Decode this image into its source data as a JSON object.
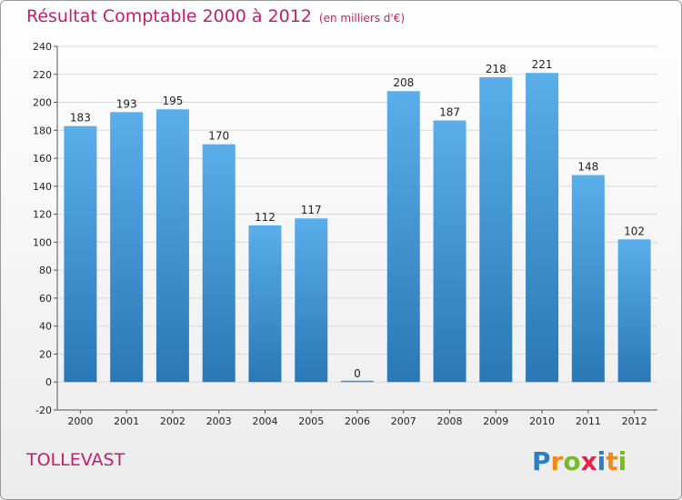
{
  "title": "Résultat Comptable 2000 à 2012",
  "unit": "(en milliers d'€)",
  "commune": "TOLLEVAST",
  "logo_text": "Proxiti",
  "colors": {
    "title": "#c41e6a",
    "bar_top": "#5aaeea",
    "bar_bottom": "#2a78b6",
    "grid": "#d9d9d9"
  },
  "chart_data": {
    "type": "bar",
    "categories": [
      "2000",
      "2001",
      "2002",
      "2003",
      "2004",
      "2005",
      "2006",
      "2007",
      "2008",
      "2009",
      "2010",
      "2011",
      "2012"
    ],
    "values": [
      183,
      193,
      195,
      170,
      112,
      117,
      0,
      208,
      187,
      218,
      221,
      148,
      102
    ],
    "title": "Résultat Comptable 2000 à 2012",
    "xlabel": "",
    "ylabel": "",
    "ylim": [
      -20,
      240
    ],
    "yticks": [
      -20,
      0,
      20,
      40,
      60,
      80,
      100,
      120,
      140,
      160,
      180,
      200,
      220,
      240
    ],
    "grid": true,
    "legend": "none"
  }
}
